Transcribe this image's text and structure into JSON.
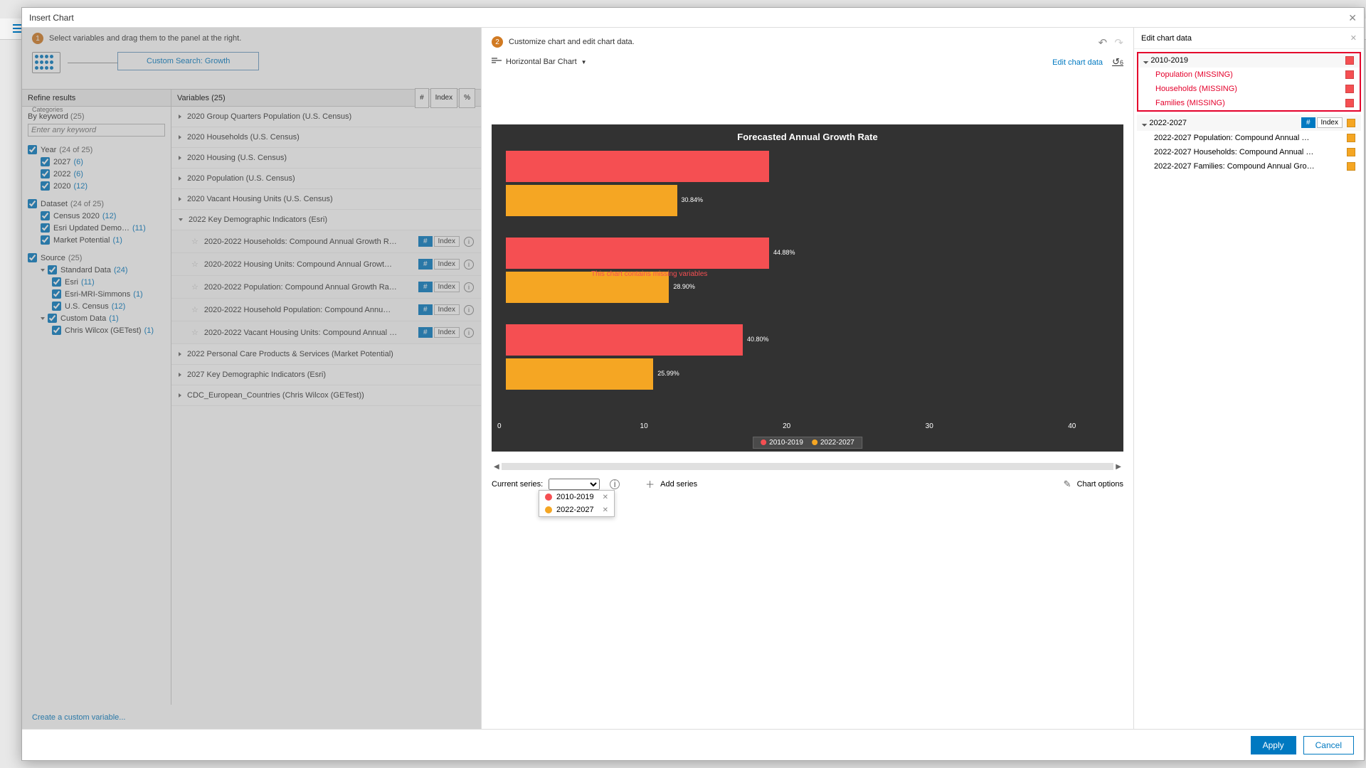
{
  "modal_title": "Insert Chart",
  "step1_text": "Select variables and drag them to the panel at the right.",
  "step2_text": "Customize chart and edit chart data.",
  "breadcrumb": {
    "categories_label": "Categories",
    "search_label": "Custom Search: Growth"
  },
  "refine": {
    "header": "Refine results",
    "keyword_label": "By keyword",
    "keyword_count": "(25)",
    "keyword_placeholder": "Enter any keyword",
    "year": {
      "label": "Year",
      "count": "(24 of 25)",
      "items": [
        {
          "label": "2027",
          "count": "(6)"
        },
        {
          "label": "2022",
          "count": "(6)"
        },
        {
          "label": "2020",
          "count": "(12)"
        }
      ]
    },
    "dataset": {
      "label": "Dataset",
      "count": "(24 of 25)",
      "items": [
        {
          "label": "Census 2020",
          "count": "(12)"
        },
        {
          "label": "Esri Updated Demo…",
          "count": "(11)"
        },
        {
          "label": "Market Potential",
          "count": "(1)"
        }
      ]
    },
    "source": {
      "label": "Source",
      "count": "(25)",
      "standard": {
        "label": "Standard Data",
        "count": "(24)",
        "items": [
          {
            "label": "Esri",
            "count": "(11)"
          },
          {
            "label": "Esri-MRI-Simmons",
            "count": "(1)"
          },
          {
            "label": "U.S. Census",
            "count": "(12)"
          }
        ]
      },
      "custom": {
        "label": "Custom Data",
        "count": "(1)",
        "items": [
          {
            "label": "Chris Wilcox (GETest)",
            "count": "(1)"
          }
        ]
      }
    }
  },
  "vars": {
    "header": "Variables (25)",
    "hdr_hash": "#",
    "hdr_index": "Index",
    "hdr_pct": "%",
    "groups_top": [
      "2020 Group Quarters Population (U.S. Census)",
      "2020 Households (U.S. Census)",
      "2020 Housing (U.S. Census)",
      "2020 Population (U.S. Census)",
      "2020 Vacant Housing Units (U.S. Census)"
    ],
    "expanded_label": "2022 Key Demographic Indicators (Esri)",
    "expanded_items": [
      "2020-2022 Households: Compound Annual Growth R…",
      "2020-2022 Housing Units: Compound Annual Growt…",
      "2020-2022 Population: Compound Annual Growth Ra…",
      "2020-2022 Household Population: Compound Annu…",
      "2020-2022 Vacant Housing Units: Compound Annual …"
    ],
    "groups_bottom": [
      "2022 Personal Care Products & Services (Market Potential)",
      "2027 Key Demographic Indicators (Esri)",
      "CDC_European_Countries (Chris Wilcox (GETest))"
    ]
  },
  "create_link": "Create a custom variable...",
  "chart_type": "Horizontal Bar Chart",
  "edit_chart_link": "Edit chart data",
  "rotate_badge": "6",
  "chart": {
    "title": "Forecasted Annual Growth Rate",
    "bg": "#323232",
    "colors": {
      "s1": "#f54f52",
      "s2": "#f5a623"
    },
    "warning": "This chart contains missing variables",
    "x_ticks": [
      "0",
      "10",
      "20",
      "30",
      "40"
    ],
    "x_max": 45,
    "pairs": [
      {
        "red_w": 100,
        "orange_w": 65,
        "orange_label": "30.84%"
      },
      {
        "red_w": 100,
        "orange_w": 62,
        "orange_label": "28.90%",
        "red_label": "44.88%"
      },
      {
        "red_w": 90,
        "orange_w": 56,
        "orange_label": "25.99%",
        "red_label": "40.80%"
      }
    ],
    "legend": [
      {
        "label": "2010-2019",
        "color": "#f54f52"
      },
      {
        "label": "2022-2027",
        "color": "#f5a623"
      }
    ]
  },
  "series": {
    "label": "Current series:",
    "add": "Add series",
    "options_label": "Chart options",
    "dropdown": [
      {
        "label": "2010-2019",
        "color": "#f54f52"
      },
      {
        "label": "2022-2027",
        "color": "#f5a623"
      }
    ]
  },
  "right": {
    "title": "Edit chart data",
    "g1": {
      "label": "2010-2019",
      "color": "#f54f52",
      "items": [
        "Population (MISSING)",
        "Households (MISSING)",
        "Families (MISSING)"
      ]
    },
    "g2": {
      "label": "2022-2027",
      "color": "#f5a623",
      "hash": "#",
      "index": "Index",
      "items": [
        "2022-2027 Population: Compound Annual …",
        "2022-2027 Households: Compound Annual …",
        "2022-2027 Families: Compound Annual Gro…"
      ]
    }
  },
  "footer": {
    "apply": "Apply",
    "cancel": "Cancel"
  }
}
